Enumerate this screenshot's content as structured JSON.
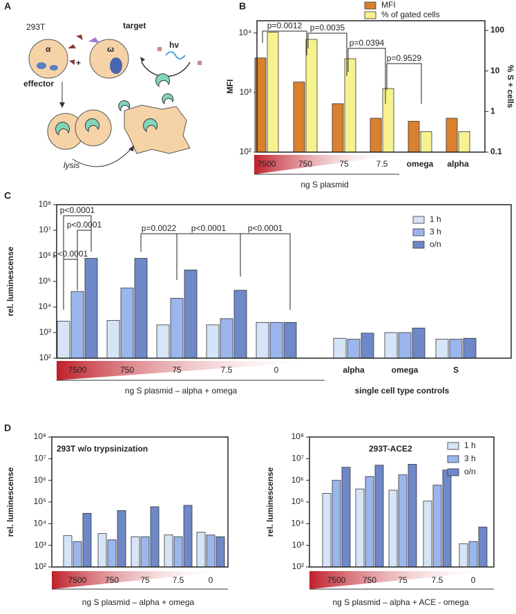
{
  "diagram": {
    "panel": "A",
    "cell_line": "293T",
    "target": "target",
    "effector": "effector",
    "alpha": "α",
    "omega": "ω",
    "light": "hv",
    "lysis": "lysis",
    "plus": "+"
  },
  "chart_data": [
    {
      "panel": "B",
      "type": "bar",
      "log_scale": true,
      "categories": [
        "7500",
        "750",
        "75",
        "7.5",
        "omega",
        "alpha"
      ],
      "series": [
        {
          "name": "MFI",
          "color": "#d9812f",
          "values": [
            3800,
            1500,
            650,
            370,
            330,
            370
          ]
        },
        {
          "name": "% of gated cells",
          "color": "#f6f28e",
          "axis": "y2",
          "values": [
            90,
            60,
            20,
            3.7,
            0.32,
            0.32
          ]
        }
      ],
      "ylabel": "MFI",
      "y2label": "% S + cells",
      "xlabel": "ng S plasmid",
      "ylim": [
        100,
        16000
      ],
      "yticks": [
        {
          "value": 100,
          "label": "10²"
        },
        {
          "value": 1000,
          "label": "10³"
        },
        {
          "value": 10000,
          "label": "10⁴"
        }
      ],
      "y2lim": [
        0.1,
        173
      ],
      "y2ticks": [
        0.1,
        1,
        10,
        100
      ],
      "annotations": [
        "p=0.0012",
        "p=0.0035",
        "p=0.0394",
        "p=0.9529"
      ]
    },
    {
      "panel": "C",
      "type": "bar",
      "log_scale": true,
      "categories": [
        "7500",
        "750",
        "75",
        "7.5",
        "0",
        "alpha",
        "omega",
        "S"
      ],
      "series": [
        {
          "name": "1 h",
          "color": "#d6e4f7",
          "values": [
            2800,
            3000,
            2000,
            2000,
            2500,
            600,
            1000,
            550
          ]
        },
        {
          "name": "3 h",
          "color": "#9ab6ec",
          "values": [
            40000,
            55000,
            22000,
            3500,
            2500,
            550,
            1000,
            550
          ]
        },
        {
          "name": "o/n",
          "color": "#6f88c8",
          "values": [
            800000,
            800000,
            280000,
            45000,
            2500,
            950,
            1500,
            600
          ]
        }
      ],
      "ylabel": "rel. luminescense",
      "xlabel": "ng S plasmid – alpha + omega",
      "xlabel2": "single cell type controls",
      "ylim": [
        100,
        100000000
      ],
      "yticks": [
        {
          "value": 100,
          "label": "10²"
        },
        {
          "value": 1000,
          "label": "10³"
        },
        {
          "value": 10000,
          "label": "10⁴"
        },
        {
          "value": 100000,
          "label": "10⁵"
        },
        {
          "value": 1000000,
          "label": "10⁶"
        },
        {
          "value": 10000000,
          "label": "10⁷"
        },
        {
          "value": 100000000,
          "label": "10⁸"
        }
      ],
      "annotations": [
        "p<0.0001",
        "p<0.0001",
        "p<0.0001",
        "p=0.0022",
        "p<0.0001",
        "p<0.0001"
      ]
    },
    {
      "panel": "D",
      "type": "bar",
      "log_scale": true,
      "title": "293T w/o trypsinization",
      "categories": [
        "7500",
        "750",
        "75",
        "7.5",
        "0"
      ],
      "series": [
        {
          "color": "#d6e4f7",
          "values": [
            2800,
            3500,
            2500,
            3000,
            4000
          ]
        },
        {
          "color": "#9ab6ec",
          "values": [
            1500,
            1800,
            2500,
            2500,
            3000
          ]
        },
        {
          "color": "#6f88c8",
          "values": [
            30000,
            40000,
            60000,
            70000,
            2500
          ]
        }
      ],
      "ylabel": "rel. luminescense",
      "xlabel": "ng S plasmid – alpha + omega",
      "ylim": [
        100,
        100000000
      ],
      "yticks": [
        {
          "value": 100,
          "label": "10²"
        },
        {
          "value": 1000,
          "label": "10³"
        },
        {
          "value": 10000,
          "label": "10⁴"
        },
        {
          "value": 100000,
          "label": "10⁵"
        },
        {
          "value": 1000000,
          "label": "10⁶"
        },
        {
          "value": 10000000,
          "label": "10⁷"
        },
        {
          "value": 100000000,
          "label": "10⁸"
        }
      ]
    },
    {
      "type": "bar",
      "log_scale": true,
      "title": "293T-ACE2",
      "categories": [
        "7500",
        "750",
        "75",
        "7.5",
        "0"
      ],
      "series": [
        {
          "name": "1 h",
          "color": "#d6e4f7",
          "values": [
            250000,
            400000,
            350000,
            110000,
            1200
          ]
        },
        {
          "name": "3 h",
          "color": "#9ab6ec",
          "values": [
            1000000,
            1500000,
            1800000,
            600000,
            1500
          ]
        },
        {
          "name": "o/n",
          "color": "#6f88c8",
          "values": [
            4000000,
            5000000,
            5500000,
            3000000,
            7000
          ]
        }
      ],
      "ylabel": "rel. luminescense",
      "xlabel": "ng S plasmid – alpha + ACE - omega",
      "ylim": [
        100,
        100000000
      ],
      "yticks": [
        {
          "value": 100,
          "label": "10²"
        },
        {
          "value": 1000,
          "label": "10³"
        },
        {
          "value": 10000,
          "label": "10⁴"
        },
        {
          "value": 100000,
          "label": "10⁵"
        },
        {
          "value": 1000000,
          "label": "10⁶"
        },
        {
          "value": 10000000,
          "label": "10⁷"
        },
        {
          "value": 100000000,
          "label": "10⁸"
        }
      ]
    }
  ]
}
